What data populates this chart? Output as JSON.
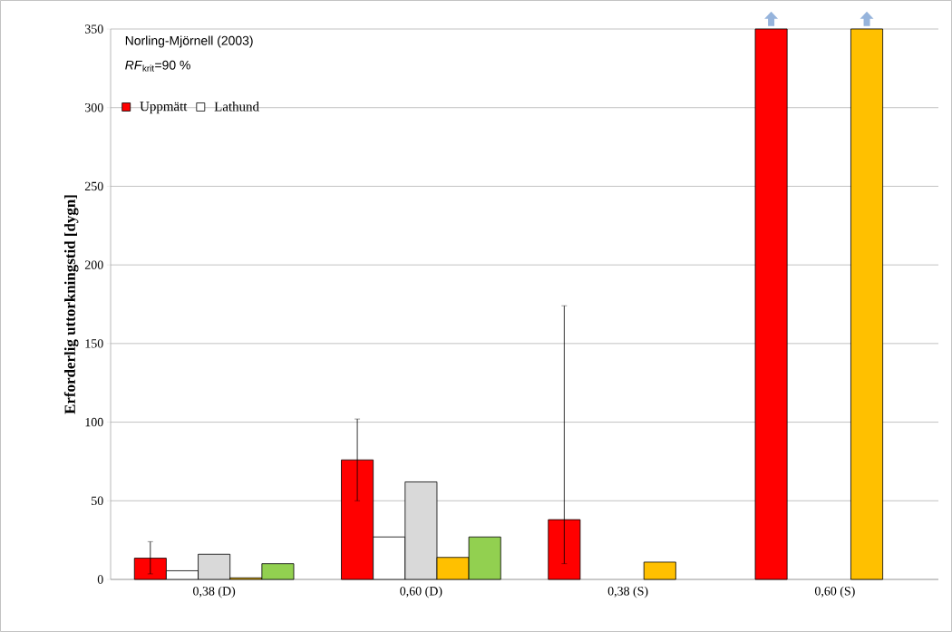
{
  "chart_data": {
    "type": "bar",
    "ylabel": "Erforderlig uttorkningstid [dygn]",
    "annotations": [
      "Norling-Mjörnell (2003)",
      "*RF*$_{krit}$=90 %"
    ],
    "categories": [
      "0,38 (D)",
      "0,60 (D)",
      "0,38 (S)",
      "0,60 (S)"
    ],
    "series": [
      {
        "name": "Uppmätt",
        "color": "#ff0000",
        "values": [
          13.5,
          76,
          38,
          350
        ],
        "errors": [
          [
            3.5,
            24
          ],
          [
            50,
            102
          ],
          [
            10,
            174
          ],
          null
        ]
      },
      {
        "name": "Lathund",
        "color": "#ffffff",
        "values": [
          5.5,
          27,
          null,
          null
        ]
      },
      {
        "color": "#d9d9d9",
        "values": [
          16,
          62,
          null,
          null
        ]
      },
      {
        "color": "#ffc000",
        "values": [
          1,
          14,
          11,
          350
        ]
      },
      {
        "color": "#92d050",
        "values": [
          10,
          27,
          null,
          null
        ]
      }
    ],
    "ylim": [
      0,
      350
    ],
    "yticks": [
      0,
      50,
      100,
      150,
      200,
      250,
      300,
      350
    ],
    "grid": "y",
    "legend": "top left"
  }
}
